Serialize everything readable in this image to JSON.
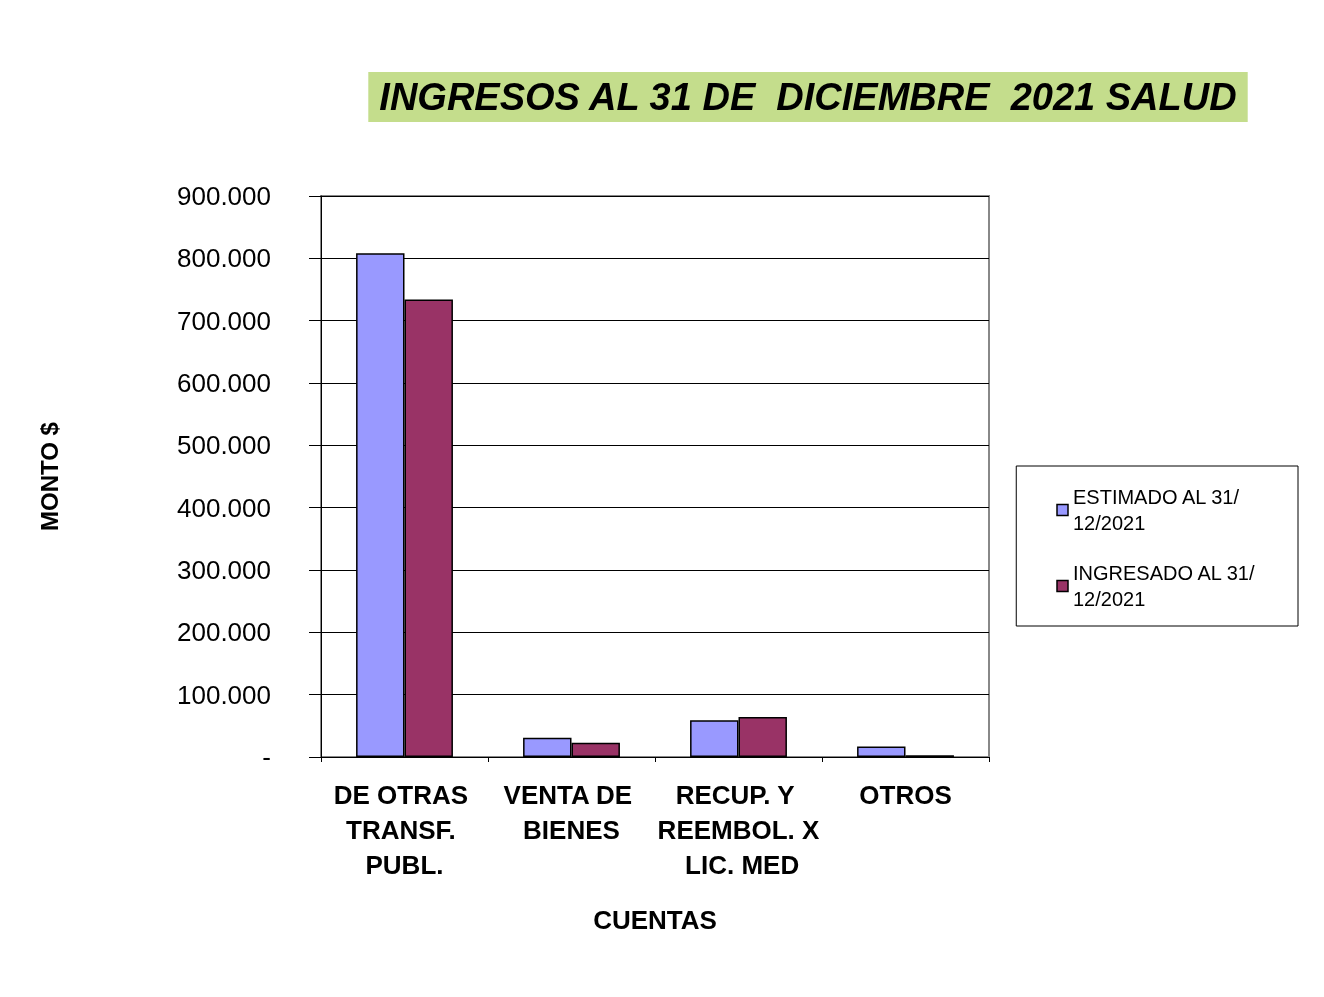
{
  "chart_data": {
    "type": "bar",
    "title": "INGRESOS AL 31 DE  DICIEMBRE  2021 SALUD",
    "xlabel": "CUENTAS",
    "ylabel": "MONTO $",
    "categories": [
      "DE OTRAS TRANSF. PUBL.",
      "VENTA DE BIENES",
      "RECUP. Y REEMBOL. X LIC. MED",
      "OTROS"
    ],
    "series": [
      {
        "name": "ESTIMADO AL 31/12/2021",
        "color": "#9999ff",
        "values": [
          808000,
          31000,
          59000,
          17000
        ]
      },
      {
        "name": "INGRESADO AL 31/12/2021",
        "color": "#993366",
        "values": [
          734000,
          23000,
          64000,
          3000
        ]
      }
    ],
    "ylim": [
      0,
      900000
    ],
    "yticks": [
      {
        "value": 0,
        "label": "-"
      },
      {
        "value": 100000,
        "label": "100.000"
      },
      {
        "value": 200000,
        "label": "200.000"
      },
      {
        "value": 300000,
        "label": "300.000"
      },
      {
        "value": 400000,
        "label": "400.000"
      },
      {
        "value": 500000,
        "label": "500.000"
      },
      {
        "value": 600000,
        "label": "600.000"
      },
      {
        "value": 700000,
        "label": "700.000"
      },
      {
        "value": 800000,
        "label": "800.000"
      },
      {
        "value": 900000,
        "label": "900.000"
      }
    ],
    "grid": "y",
    "legend": "right"
  }
}
